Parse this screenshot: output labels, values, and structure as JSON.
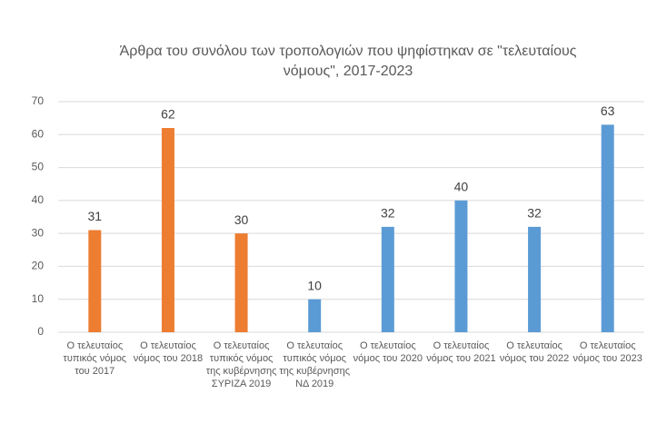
{
  "chart_data": {
    "type": "bar",
    "title": "Άρθρα του συνόλου των τροπολογιών που ψηφίστηκαν σε \"τελευταίους νόμους\", 2017-2023",
    "categories": [
      "Ο τελευταίος τυπικός νόμος του 2017",
      "Ο τελευταίος νόμος του 2018",
      "Ο τελευταίος τυπικός νόμος της κυβέρνησης ΣΥΡΙΖΑ 2019",
      "Ο τελευταίος τυπικός νόμος της κυβέρνησης ΝΔ 2019",
      "Ο τελευταίος νόμος του 2020",
      "Ο τελευταίος νόμος του 2021",
      "Ο τελευταίος νόμος του 2022",
      "Ο τελευταίος νόμος του 2023"
    ],
    "values": [
      31,
      62,
      30,
      10,
      32,
      40,
      32,
      63
    ],
    "colors": [
      "#ed7d31",
      "#ed7d31",
      "#ed7d31",
      "#5b9bd5",
      "#5b9bd5",
      "#5b9bd5",
      "#5b9bd5",
      "#5b9bd5"
    ],
    "ylim": [
      0,
      70
    ],
    "yticks": [
      0,
      10,
      20,
      30,
      40,
      50,
      60,
      70
    ],
    "grid": true
  }
}
